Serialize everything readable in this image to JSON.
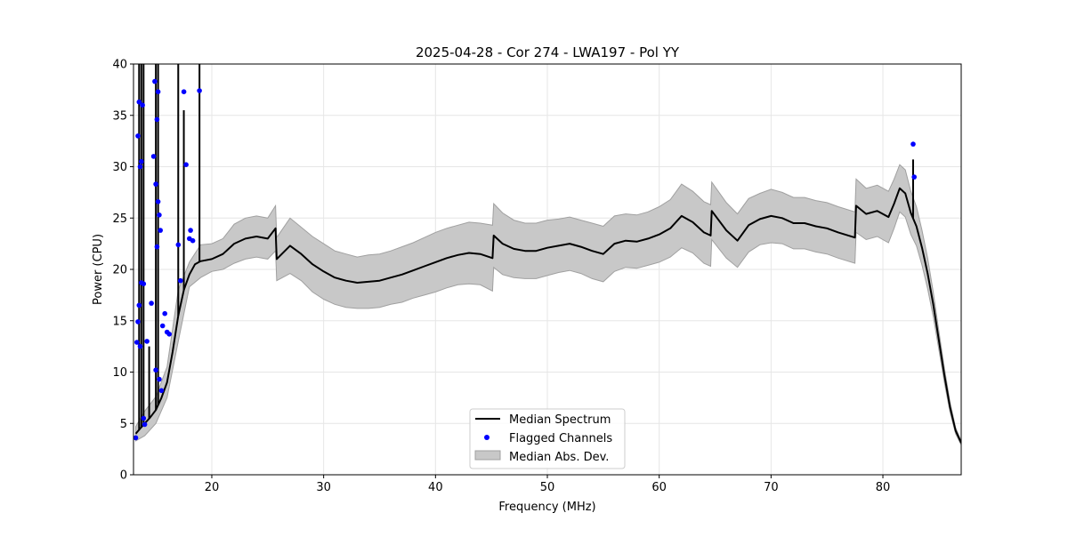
{
  "chart_data": {
    "type": "line",
    "title": "2025-04-28 - Cor 274 - LWA197 - Pol YY",
    "xlabel": "Frequency (MHz)",
    "ylabel": "Power (CPU)",
    "xlim": [
      13,
      87
    ],
    "ylim": [
      0,
      40
    ],
    "xticks": [
      20,
      30,
      40,
      50,
      60,
      70,
      80
    ],
    "yticks": [
      0,
      5,
      10,
      15,
      20,
      25,
      30,
      35,
      40
    ],
    "grid": true,
    "legend_position": "bottom-center",
    "colors": {
      "median": "#000000",
      "flagged": "#0000ff",
      "band": "#c8c8c8",
      "band_edge": "#a0a0a0"
    },
    "series": [
      {
        "name": "Median Spectrum",
        "kind": "line",
        "x": [
          13.2,
          13.6,
          14.0,
          14.5,
          15.0,
          15.5,
          16.0,
          16.5,
          17.0,
          17.5,
          18.0,
          18.5,
          19.0,
          20.0,
          21.0,
          22.0,
          23.0,
          24.0,
          25.0,
          25.7,
          25.8,
          27.0,
          28.0,
          29.0,
          30.0,
          31.0,
          32.0,
          33.0,
          34.0,
          35.0,
          36.0,
          37.0,
          38.0,
          39.0,
          40.0,
          41.0,
          42.0,
          43.0,
          44.0,
          45.1,
          45.2,
          46.0,
          47.0,
          48.0,
          49.0,
          50.0,
          51.0,
          52.0,
          53.0,
          54.0,
          55.0,
          56.0,
          57.0,
          58.0,
          59.0,
          60.0,
          61.0,
          62.0,
          63.0,
          64.0,
          64.6,
          64.7,
          66.0,
          67.0,
          68.0,
          69.0,
          70.0,
          71.0,
          72.0,
          73.0,
          74.0,
          75.0,
          76.0,
          77.5,
          77.6,
          78.5,
          79.5,
          80.5,
          81.0,
          81.5,
          82.0,
          82.5,
          83.0,
          83.5,
          84.0,
          84.5,
          85.0,
          85.5,
          86.0,
          86.5,
          87.0
        ],
        "y": [
          4.0,
          4.5,
          5.0,
          5.6,
          6.3,
          7.5,
          9.0,
          12.0,
          15.5,
          18.0,
          19.5,
          20.5,
          20.8,
          21.0,
          21.5,
          22.5,
          23.0,
          23.2,
          23.0,
          24.0,
          21.0,
          22.3,
          21.5,
          20.5,
          19.8,
          19.2,
          18.9,
          18.7,
          18.8,
          18.9,
          19.2,
          19.5,
          19.9,
          20.3,
          20.7,
          21.1,
          21.4,
          21.6,
          21.5,
          21.1,
          23.3,
          22.5,
          22.0,
          21.8,
          21.8,
          22.1,
          22.3,
          22.5,
          22.2,
          21.8,
          21.5,
          22.5,
          22.8,
          22.7,
          23.0,
          23.4,
          24.0,
          25.2,
          24.6,
          23.6,
          23.3,
          25.7,
          23.8,
          22.8,
          24.3,
          24.9,
          25.2,
          25.0,
          24.5,
          24.5,
          24.2,
          24.0,
          23.6,
          23.1,
          26.2,
          25.4,
          25.7,
          25.1,
          26.4,
          27.9,
          27.4,
          25.5,
          24.2,
          22.1,
          19.6,
          16.6,
          13.1,
          9.7,
          6.6,
          4.3,
          3.1
        ],
        "spikes": [
          {
            "x": 13.5,
            "top": 40.0
          },
          {
            "x": 13.7,
            "top": 40.0
          },
          {
            "x": 13.9,
            "top": 40.0
          },
          {
            "x": 14.4,
            "top": 12.5
          },
          {
            "x": 15.0,
            "top": 40.0
          },
          {
            "x": 15.2,
            "top": 40.0
          },
          {
            "x": 17.0,
            "top": 40.0
          },
          {
            "x": 17.5,
            "top": 35.5
          },
          {
            "x": 18.9,
            "top": 40.0
          },
          {
            "x": 82.7,
            "top": 30.7
          }
        ]
      },
      {
        "name": "Flagged Channels",
        "kind": "scatter",
        "x": [
          13.2,
          13.3,
          13.4,
          13.4,
          13.5,
          13.5,
          13.6,
          13.6,
          13.7,
          13.7,
          13.8,
          13.9,
          13.9,
          14.0,
          14.2,
          14.6,
          14.8,
          14.9,
          15.0,
          15.0,
          15.1,
          15.1,
          15.2,
          15.2,
          15.3,
          15.3,
          15.4,
          15.5,
          15.6,
          15.8,
          16.0,
          16.2,
          17.0,
          17.2,
          17.5,
          17.7,
          18.0,
          18.1,
          18.3,
          18.9,
          82.7,
          82.8
        ],
        "y": [
          3.6,
          12.9,
          33.0,
          14.9,
          36.3,
          16.5,
          30.0,
          12.5,
          30.5,
          18.7,
          36.0,
          5.5,
          18.6,
          4.9,
          13.0,
          16.7,
          31.0,
          38.3,
          28.3,
          10.2,
          22.2,
          34.6,
          26.6,
          37.3,
          25.3,
          9.3,
          23.8,
          8.2,
          14.5,
          15.7,
          13.9,
          13.7,
          22.4,
          18.9,
          37.3,
          30.2,
          23.0,
          23.8,
          22.8,
          37.4,
          32.2,
          29.0
        ]
      },
      {
        "name": "Median Abs. Dev.",
        "kind": "band",
        "x": [
          13.2,
          14.0,
          15.0,
          16.0,
          17.0,
          18.0,
          19.0,
          20.0,
          21.0,
          22.0,
          23.0,
          24.0,
          25.0,
          25.7,
          25.8,
          27.0,
          28.0,
          29.0,
          30.0,
          31.0,
          32.0,
          33.0,
          34.0,
          35.0,
          36.0,
          37.0,
          38.0,
          39.0,
          40.0,
          41.0,
          42.0,
          43.0,
          44.0,
          45.1,
          45.2,
          46.0,
          47.0,
          48.0,
          49.0,
          50.0,
          51.0,
          52.0,
          53.0,
          54.0,
          55.0,
          56.0,
          57.0,
          58.0,
          59.0,
          60.0,
          61.0,
          62.0,
          63.0,
          64.0,
          64.6,
          64.7,
          66.0,
          67.0,
          68.0,
          69.0,
          70.0,
          71.0,
          72.0,
          73.0,
          74.0,
          75.0,
          76.0,
          77.5,
          77.6,
          78.5,
          79.5,
          80.5,
          81.0,
          81.5,
          82.0,
          82.5,
          83.0,
          83.5,
          84.0,
          84.5,
          85.0,
          85.5,
          86.0,
          86.5,
          87.0
        ],
        "lower": [
          3.3,
          3.8,
          5.0,
          7.5,
          13.0,
          18.3,
          19.2,
          19.8,
          20.0,
          20.6,
          21.0,
          21.2,
          21.0,
          21.8,
          18.9,
          19.6,
          18.9,
          17.8,
          17.1,
          16.6,
          16.3,
          16.2,
          16.2,
          16.3,
          16.6,
          16.8,
          17.2,
          17.5,
          17.8,
          18.2,
          18.5,
          18.6,
          18.5,
          17.9,
          20.2,
          19.5,
          19.2,
          19.1,
          19.1,
          19.4,
          19.7,
          19.9,
          19.6,
          19.1,
          18.8,
          19.8,
          20.2,
          20.1,
          20.4,
          20.7,
          21.2,
          22.1,
          21.6,
          20.6,
          20.3,
          22.9,
          21.1,
          20.2,
          21.7,
          22.4,
          22.6,
          22.5,
          22.0,
          22.0,
          21.7,
          21.5,
          21.1,
          20.6,
          23.6,
          22.9,
          23.2,
          22.6,
          24.0,
          25.6,
          25.1,
          23.4,
          22.3,
          20.4,
          18.1,
          15.4,
          12.2,
          9.0,
          6.1,
          4.0,
          2.9
        ],
        "upper": [
          4.7,
          6.2,
          7.6,
          10.5,
          18.0,
          20.7,
          22.4,
          22.5,
          23.0,
          24.4,
          25.0,
          25.2,
          25.0,
          26.2,
          23.1,
          25.0,
          24.1,
          23.2,
          22.5,
          21.8,
          21.5,
          21.2,
          21.4,
          21.5,
          21.8,
          22.2,
          22.6,
          23.1,
          23.6,
          24.0,
          24.3,
          24.6,
          24.5,
          24.3,
          26.4,
          25.5,
          24.8,
          24.5,
          24.5,
          24.8,
          24.9,
          25.1,
          24.8,
          24.5,
          24.2,
          25.2,
          25.4,
          25.3,
          25.6,
          26.1,
          26.8,
          28.3,
          27.6,
          26.6,
          26.3,
          28.5,
          26.5,
          25.4,
          26.9,
          27.4,
          27.8,
          27.5,
          27.0,
          27.0,
          26.7,
          26.5,
          26.1,
          25.6,
          28.8,
          27.9,
          28.2,
          27.6,
          28.8,
          30.2,
          29.7,
          27.6,
          26.1,
          23.8,
          21.1,
          17.8,
          14.0,
          10.4,
          7.1,
          4.6,
          3.3
        ]
      }
    ]
  }
}
